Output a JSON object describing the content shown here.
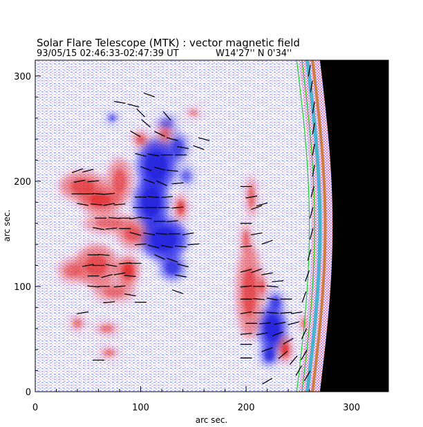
{
  "chart_data": {
    "type": "heatmap",
    "title": "Solar Flare Telescope (MTK) : vector magnetic field",
    "subtitle_date_time": "93/05/15  02:46:33-02:47:39 UT",
    "subtitle_position": "W14'27''  N 0'34''",
    "xlabel": "arc sec.",
    "ylabel": "arc sec.",
    "xlim": [
      0,
      335
    ],
    "ylim": [
      0,
      315
    ],
    "xticks": [
      0,
      100,
      200,
      300
    ],
    "yticks": [
      0,
      100,
      200,
      300
    ],
    "x_tick_labels": [
      "0",
      "100",
      "200",
      "300"
    ],
    "y_tick_labels": [
      "0",
      "100",
      "200",
      "300"
    ],
    "colors": {
      "positive_polarity": "#e83a3a",
      "negative_polarity": "#2b2be6",
      "limb_contour": "#22cc22",
      "off_disk": "#000000",
      "background": "#ffffff"
    },
    "positive_regions": [
      {
        "x": 45,
        "y": 195,
        "rx": 22,
        "ry": 14,
        "strength": 0.8
      },
      {
        "x": 62,
        "y": 182,
        "rx": 20,
        "ry": 12,
        "strength": 0.9
      },
      {
        "x": 80,
        "y": 200,
        "rx": 12,
        "ry": 22,
        "strength": 0.7
      },
      {
        "x": 70,
        "y": 160,
        "rx": 25,
        "ry": 10,
        "strength": 0.6
      },
      {
        "x": 58,
        "y": 120,
        "rx": 20,
        "ry": 20,
        "strength": 0.8
      },
      {
        "x": 88,
        "y": 115,
        "rx": 10,
        "ry": 14,
        "strength": 1.0
      },
      {
        "x": 75,
        "y": 95,
        "rx": 20,
        "ry": 10,
        "strength": 0.6
      },
      {
        "x": 35,
        "y": 115,
        "rx": 14,
        "ry": 12,
        "strength": 0.6
      },
      {
        "x": 92,
        "y": 150,
        "rx": 14,
        "ry": 14,
        "strength": 0.7
      },
      {
        "x": 100,
        "y": 240,
        "rx": 8,
        "ry": 8,
        "strength": 0.7
      },
      {
        "x": 123,
        "y": 245,
        "rx": 8,
        "ry": 10,
        "strength": 0.6
      },
      {
        "x": 138,
        "y": 175,
        "rx": 6,
        "ry": 12,
        "strength": 0.9
      },
      {
        "x": 68,
        "y": 60,
        "rx": 12,
        "ry": 7,
        "strength": 0.5
      },
      {
        "x": 40,
        "y": 65,
        "rx": 8,
        "ry": 8,
        "strength": 0.5
      },
      {
        "x": 70,
        "y": 37,
        "rx": 10,
        "ry": 6,
        "strength": 0.5
      },
      {
        "x": 205,
        "y": 185,
        "rx": 5,
        "ry": 20,
        "strength": 0.7
      },
      {
        "x": 200,
        "y": 145,
        "rx": 5,
        "ry": 15,
        "strength": 0.7
      },
      {
        "x": 203,
        "y": 95,
        "rx": 12,
        "ry": 45,
        "strength": 0.8
      },
      {
        "x": 215,
        "y": 100,
        "rx": 6,
        "ry": 12,
        "strength": 0.5
      },
      {
        "x": 237,
        "y": 40,
        "rx": 6,
        "ry": 12,
        "strength": 1.0
      },
      {
        "x": 255,
        "y": 65,
        "rx": 3,
        "ry": 8,
        "strength": 0.9
      },
      {
        "x": 150,
        "y": 265,
        "rx": 8,
        "ry": 6,
        "strength": 0.4
      }
    ],
    "negative_regions": [
      {
        "x": 115,
        "y": 215,
        "rx": 18,
        "ry": 25,
        "strength": 1.0
      },
      {
        "x": 110,
        "y": 180,
        "rx": 16,
        "ry": 25,
        "strength": 1.0
      },
      {
        "x": 122,
        "y": 145,
        "rx": 22,
        "ry": 20,
        "strength": 1.0
      },
      {
        "x": 130,
        "y": 118,
        "rx": 12,
        "ry": 12,
        "strength": 0.8
      },
      {
        "x": 135,
        "y": 232,
        "rx": 10,
        "ry": 14,
        "strength": 0.7
      },
      {
        "x": 125,
        "y": 255,
        "rx": 10,
        "ry": 8,
        "strength": 0.5
      },
      {
        "x": 143,
        "y": 205,
        "rx": 8,
        "ry": 10,
        "strength": 0.5
      },
      {
        "x": 73,
        "y": 260,
        "rx": 5,
        "ry": 5,
        "strength": 0.7
      },
      {
        "x": 225,
        "y": 60,
        "rx": 13,
        "ry": 22,
        "strength": 1.0
      },
      {
        "x": 222,
        "y": 35,
        "rx": 8,
        "ry": 10,
        "strength": 0.9
      },
      {
        "x": 228,
        "y": 85,
        "rx": 8,
        "ry": 10,
        "strength": 0.7
      }
    ],
    "limb_x": 270,
    "vectors": [
      {
        "x": 40,
        "y": 210,
        "a": 20
      },
      {
        "x": 50,
        "y": 210,
        "a": 15
      },
      {
        "x": 42,
        "y": 200,
        "a": 10
      },
      {
        "x": 55,
        "y": 200,
        "a": 5
      },
      {
        "x": 40,
        "y": 188,
        "a": 0
      },
      {
        "x": 50,
        "y": 188,
        "a": 0
      },
      {
        "x": 60,
        "y": 188,
        "a": -5
      },
      {
        "x": 70,
        "y": 188,
        "a": 5
      },
      {
        "x": 45,
        "y": 178,
        "a": -10
      },
      {
        "x": 58,
        "y": 178,
        "a": -5
      },
      {
        "x": 70,
        "y": 178,
        "a": 10
      },
      {
        "x": 80,
        "y": 178,
        "a": 5
      },
      {
        "x": 62,
        "y": 165,
        "a": 0
      },
      {
        "x": 75,
        "y": 165,
        "a": -5
      },
      {
        "x": 85,
        "y": 165,
        "a": 0
      },
      {
        "x": 95,
        "y": 165,
        "a": 10
      },
      {
        "x": 60,
        "y": 155,
        "a": -10
      },
      {
        "x": 72,
        "y": 155,
        "a": 5
      },
      {
        "x": 85,
        "y": 155,
        "a": 0
      },
      {
        "x": 95,
        "y": 150,
        "a": -15
      },
      {
        "x": 100,
        "y": 140,
        "a": 5
      },
      {
        "x": 55,
        "y": 130,
        "a": 0
      },
      {
        "x": 65,
        "y": 130,
        "a": -5
      },
      {
        "x": 50,
        "y": 120,
        "a": 10
      },
      {
        "x": 60,
        "y": 120,
        "a": 0
      },
      {
        "x": 72,
        "y": 120,
        "a": -10
      },
      {
        "x": 85,
        "y": 122,
        "a": 5
      },
      {
        "x": 95,
        "y": 122,
        "a": 0
      },
      {
        "x": 55,
        "y": 110,
        "a": 0
      },
      {
        "x": 68,
        "y": 110,
        "a": 15
      },
      {
        "x": 80,
        "y": 112,
        "a": 10
      },
      {
        "x": 90,
        "y": 110,
        "a": -5
      },
      {
        "x": 55,
        "y": 100,
        "a": -5
      },
      {
        "x": 65,
        "y": 100,
        "a": 0
      },
      {
        "x": 80,
        "y": 100,
        "a": 5
      },
      {
        "x": 90,
        "y": 92,
        "a": -10
      },
      {
        "x": 100,
        "y": 85,
        "a": 0
      },
      {
        "x": 70,
        "y": 85,
        "a": 5
      },
      {
        "x": 45,
        "y": 75,
        "a": 10
      },
      {
        "x": 60,
        "y": 30,
        "a": 0
      },
      {
        "x": 100,
        "y": 225,
        "a": -15
      },
      {
        "x": 112,
        "y": 225,
        "a": -10
      },
      {
        "x": 125,
        "y": 225,
        "a": 0
      },
      {
        "x": 138,
        "y": 225,
        "a": 0
      },
      {
        "x": 105,
        "y": 212,
        "a": -20
      },
      {
        "x": 118,
        "y": 212,
        "a": -15
      },
      {
        "x": 130,
        "y": 210,
        "a": -5
      },
      {
        "x": 108,
        "y": 200,
        "a": -20
      },
      {
        "x": 120,
        "y": 198,
        "a": -25
      },
      {
        "x": 135,
        "y": 198,
        "a": 5
      },
      {
        "x": 100,
        "y": 185,
        "a": 0
      },
      {
        "x": 112,
        "y": 185,
        "a": -5
      },
      {
        "x": 125,
        "y": 185,
        "a": 5
      },
      {
        "x": 98,
        "y": 175,
        "a": 0
      },
      {
        "x": 110,
        "y": 175,
        "a": 0
      },
      {
        "x": 122,
        "y": 175,
        "a": 0
      },
      {
        "x": 135,
        "y": 175,
        "a": 5
      },
      {
        "x": 105,
        "y": 165,
        "a": -5
      },
      {
        "x": 118,
        "y": 162,
        "a": 0
      },
      {
        "x": 130,
        "y": 162,
        "a": 5
      },
      {
        "x": 108,
        "y": 150,
        "a": -10
      },
      {
        "x": 120,
        "y": 150,
        "a": -5
      },
      {
        "x": 132,
        "y": 150,
        "a": 0
      },
      {
        "x": 145,
        "y": 150,
        "a": 10
      },
      {
        "x": 112,
        "y": 138,
        "a": -15
      },
      {
        "x": 125,
        "y": 138,
        "a": -10
      },
      {
        "x": 138,
        "y": 138,
        "a": -5
      },
      {
        "x": 150,
        "y": 140,
        "a": 5
      },
      {
        "x": 118,
        "y": 128,
        "a": -25
      },
      {
        "x": 130,
        "y": 125,
        "a": -20
      },
      {
        "x": 140,
        "y": 120,
        "a": -15
      },
      {
        "x": 138,
        "y": 110,
        "a": -10
      },
      {
        "x": 135,
        "y": 95,
        "a": -20
      },
      {
        "x": 95,
        "y": 245,
        "a": -30
      },
      {
        "x": 118,
        "y": 245,
        "a": -25
      },
      {
        "x": 130,
        "y": 240,
        "a": -15
      },
      {
        "x": 140,
        "y": 232,
        "a": -10
      },
      {
        "x": 105,
        "y": 255,
        "a": -40
      },
      {
        "x": 125,
        "y": 262,
        "a": -50
      },
      {
        "x": 100,
        "y": 265,
        "a": -45
      },
      {
        "x": 155,
        "y": 232,
        "a": -20
      },
      {
        "x": 160,
        "y": 240,
        "a": -15
      },
      {
        "x": 200,
        "y": 195,
        "a": 0
      },
      {
        "x": 205,
        "y": 185,
        "a": 10
      },
      {
        "x": 210,
        "y": 175,
        "a": 20
      },
      {
        "x": 215,
        "y": 178,
        "a": 15
      },
      {
        "x": 200,
        "y": 160,
        "a": 0
      },
      {
        "x": 210,
        "y": 150,
        "a": 10
      },
      {
        "x": 200,
        "y": 138,
        "a": 5
      },
      {
        "x": 220,
        "y": 142,
        "a": 20
      },
      {
        "x": 200,
        "y": 115,
        "a": 15
      },
      {
        "x": 210,
        "y": 115,
        "a": 20
      },
      {
        "x": 220,
        "y": 112,
        "a": 10
      },
      {
        "x": 230,
        "y": 105,
        "a": 5
      },
      {
        "x": 200,
        "y": 100,
        "a": 5
      },
      {
        "x": 212,
        "y": 100,
        "a": 0
      },
      {
        "x": 225,
        "y": 100,
        "a": -5
      },
      {
        "x": 200,
        "y": 88,
        "a": 0
      },
      {
        "x": 212,
        "y": 88,
        "a": -5
      },
      {
        "x": 225,
        "y": 88,
        "a": -10
      },
      {
        "x": 238,
        "y": 88,
        "a": 0
      },
      {
        "x": 200,
        "y": 75,
        "a": 10
      },
      {
        "x": 212,
        "y": 75,
        "a": 0
      },
      {
        "x": 225,
        "y": 75,
        "a": -5
      },
      {
        "x": 238,
        "y": 75,
        "a": 5
      },
      {
        "x": 248,
        "y": 75,
        "a": 10
      },
      {
        "x": 205,
        "y": 65,
        "a": 0
      },
      {
        "x": 218,
        "y": 65,
        "a": 5
      },
      {
        "x": 232,
        "y": 65,
        "a": 10
      },
      {
        "x": 245,
        "y": 65,
        "a": 15
      },
      {
        "x": 200,
        "y": 55,
        "a": 5
      },
      {
        "x": 215,
        "y": 55,
        "a": 10
      },
      {
        "x": 230,
        "y": 55,
        "a": 20
      },
      {
        "x": 240,
        "y": 48,
        "a": 30
      },
      {
        "x": 200,
        "y": 45,
        "a": 0
      },
      {
        "x": 220,
        "y": 40,
        "a": 20
      },
      {
        "x": 235,
        "y": 35,
        "a": 40
      },
      {
        "x": 200,
        "y": 32,
        "a": 0
      },
      {
        "x": 245,
        "y": 30,
        "a": 50
      },
      {
        "x": 250,
        "y": 20,
        "a": 60
      },
      {
        "x": 220,
        "y": 10,
        "a": 30
      },
      {
        "x": 255,
        "y": 90,
        "a": 70
      },
      {
        "x": 258,
        "y": 110,
        "a": 70
      },
      {
        "x": 260,
        "y": 130,
        "a": 75
      },
      {
        "x": 262,
        "y": 150,
        "a": 75
      },
      {
        "x": 262,
        "y": 170,
        "a": 75
      },
      {
        "x": 263,
        "y": 190,
        "a": 75
      },
      {
        "x": 264,
        "y": 210,
        "a": 80
      },
      {
        "x": 264,
        "y": 230,
        "a": 80
      },
      {
        "x": 264,
        "y": 250,
        "a": 80
      },
      {
        "x": 264,
        "y": 270,
        "a": 80
      },
      {
        "x": 262,
        "y": 290,
        "a": 80
      },
      {
        "x": 260,
        "y": 305,
        "a": 80
      },
      {
        "x": 255,
        "y": 55,
        "a": 65
      },
      {
        "x": 255,
        "y": 35,
        "a": 60
      },
      {
        "x": 258,
        "y": 15,
        "a": 60
      },
      {
        "x": 80,
        "y": 275,
        "a": -10
      },
      {
        "x": 108,
        "y": 282,
        "a": -20
      },
      {
        "x": 93,
        "y": 272,
        "a": -15
      }
    ]
  }
}
